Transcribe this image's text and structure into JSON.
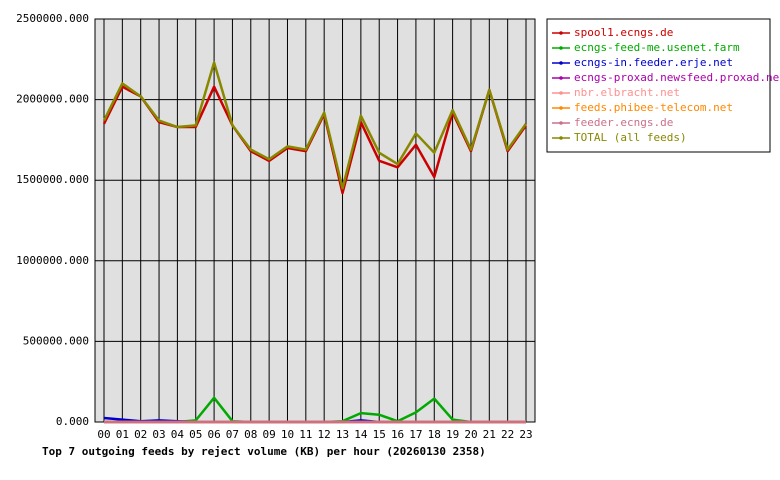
{
  "chart_data": {
    "type": "line",
    "title": "Top 7 outgoing feeds by reject volume (KB) per hour (20260130 2358)",
    "categories": [
      "00",
      "01",
      "02",
      "03",
      "04",
      "05",
      "06",
      "07",
      "08",
      "09",
      "10",
      "11",
      "12",
      "13",
      "14",
      "15",
      "16",
      "17",
      "18",
      "19",
      "20",
      "21",
      "22",
      "23"
    ],
    "ylim": [
      0,
      2500000
    ],
    "yticks": [
      {
        "value": 0,
        "label": "0.000"
      },
      {
        "value": 500000,
        "label": "500000.000"
      },
      {
        "value": 1000000,
        "label": "1000000.000"
      },
      {
        "value": 1500000,
        "label": "1500000.000"
      },
      {
        "value": 2000000,
        "label": "2000000.000"
      },
      {
        "value": 2500000,
        "label": "2500000.000"
      }
    ],
    "grid": true,
    "legend": "right",
    "series": [
      {
        "name": "spool1.ecngs.de",
        "color": "#cc0000",
        "values": [
          1850000,
          2080000,
          2020000,
          1860000,
          1830000,
          1830000,
          2080000,
          1840000,
          1680000,
          1620000,
          1700000,
          1680000,
          1910000,
          1420000,
          1860000,
          1620000,
          1580000,
          1720000,
          1520000,
          1920000,
          1680000,
          2060000,
          1680000,
          1840000
        ]
      },
      {
        "name": "ecngs-feed-me.usenet.farm",
        "color": "#00aa00",
        "values": [
          0,
          0,
          0,
          0,
          0,
          10000,
          150000,
          5000,
          0,
          0,
          0,
          0,
          0,
          5000,
          55000,
          45000,
          5000,
          60000,
          145000,
          15000,
          0,
          0,
          0,
          0
        ]
      },
      {
        "name": "ecngs-in.feeder.erje.net",
        "color": "#0000cc",
        "values": [
          25000,
          15000,
          5000,
          10000,
          5000,
          0,
          0,
          0,
          0,
          0,
          0,
          0,
          0,
          0,
          10000,
          0,
          0,
          0,
          0,
          0,
          0,
          0,
          0,
          0
        ]
      },
      {
        "name": "ecngs-proxad.newsfeed.proxad.net",
        "color": "#aa00aa",
        "values": [
          0,
          0,
          0,
          0,
          0,
          0,
          0,
          0,
          0,
          0,
          0,
          0,
          0,
          0,
          0,
          0,
          0,
          0,
          0,
          0,
          0,
          0,
          0,
          0
        ]
      },
      {
        "name": "nbr.elbracht.net",
        "color": "#ff9090",
        "values": [
          0,
          0,
          0,
          0,
          0,
          0,
          0,
          0,
          0,
          0,
          0,
          0,
          0,
          0,
          0,
          0,
          0,
          0,
          0,
          0,
          0,
          0,
          0,
          0
        ]
      },
      {
        "name": "feeds.phibee-telecom.net",
        "color": "#ff8800",
        "values": [
          0,
          0,
          0,
          0,
          0,
          0,
          0,
          0,
          0,
          0,
          0,
          0,
          0,
          0,
          0,
          0,
          0,
          0,
          0,
          0,
          0,
          0,
          0,
          0
        ]
      },
      {
        "name": "feeder.ecngs.de",
        "color": "#cc7088",
        "values": [
          0,
          0,
          0,
          0,
          0,
          0,
          0,
          0,
          0,
          0,
          0,
          0,
          0,
          0,
          0,
          0,
          0,
          0,
          0,
          0,
          0,
          0,
          0,
          0
        ]
      },
      {
        "name": "TOTAL (all feeds)",
        "color": "#888800",
        "values": [
          1870000,
          2100000,
          2020000,
          1870000,
          1830000,
          1840000,
          2230000,
          1840000,
          1690000,
          1630000,
          1710000,
          1690000,
          1920000,
          1450000,
          1900000,
          1670000,
          1600000,
          1790000,
          1670000,
          1935000,
          1690000,
          2060000,
          1690000,
          1850000
        ]
      }
    ]
  }
}
